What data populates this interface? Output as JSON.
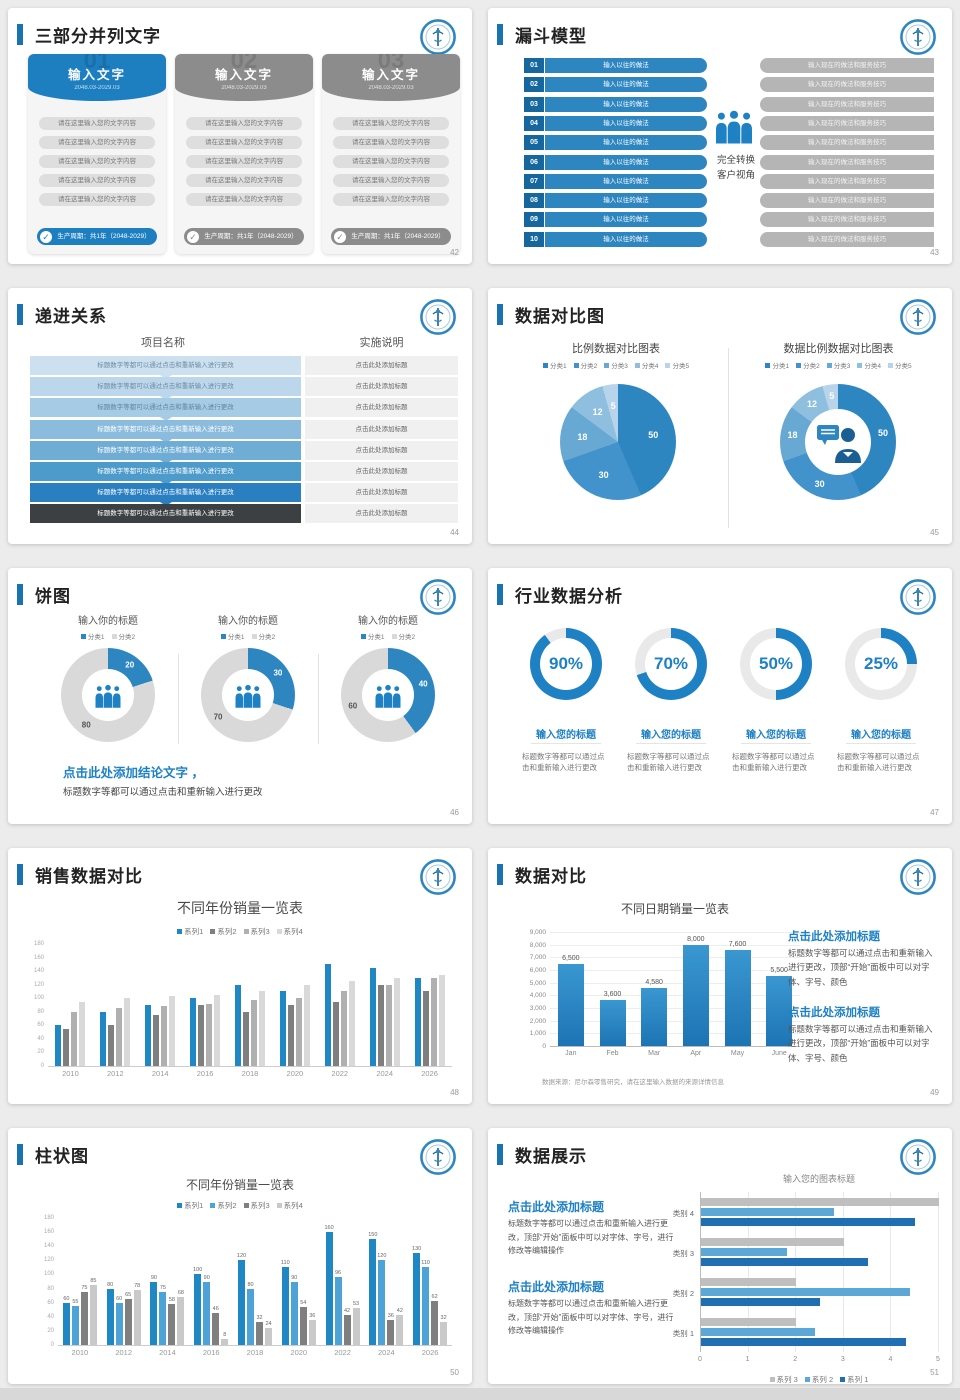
{
  "colors": {
    "accent": "#1a73b0",
    "blue": "#2e86c1",
    "blue_dark": "#15679e",
    "gray_bar": "#b5b5b5",
    "dark_row": "#3c4043"
  },
  "slides": [
    {
      "title": "三部分并列文字",
      "page": "42",
      "cards": [
        {
          "ghost": "01",
          "header": "输入文字",
          "date": "2048.03-2029.03",
          "color": "#1e7fc0",
          "items": [
            "请在这里输入您的文字内容",
            "请在这里输入您的文字内容",
            "请在这里输入您的文字内容",
            "请在这里输入您的文字内容",
            "请在这里输入您的文字内容"
          ],
          "footer": "生产周期：共1年（2048-2029）"
        },
        {
          "ghost": "02",
          "header": "输入文字",
          "date": "2048.03-2029.03",
          "color": "#8c8c8c",
          "items": [
            "请在这里输入您的文字内容",
            "请在这里输入您的文字内容",
            "请在这里输入您的文字内容",
            "请在这里输入您的文字内容",
            "请在这里输入您的文字内容"
          ],
          "footer": "生产周期：共1年（2048-2029）"
        },
        {
          "ghost": "03",
          "header": "输入文字",
          "date": "2048.03-2029.03",
          "color": "#8c8c8c",
          "items": [
            "请在这里输入您的文字内容",
            "请在这里输入您的文字内容",
            "请在这里输入您的文字内容",
            "请在这里输入您的文字内容",
            "请在这里输入您的文字内容"
          ],
          "footer": "生产周期：共1年（2048-2029）"
        }
      ]
    },
    {
      "title": "漏斗模型",
      "page": "43",
      "numbers": [
        "01",
        "02",
        "03",
        "04",
        "05",
        "06",
        "07",
        "08",
        "09",
        "10"
      ],
      "left_text": "输入以往的做法",
      "right_text": "输入现在的做法和服务技巧",
      "center_lines": [
        "完全转换",
        "客户视角"
      ]
    },
    {
      "title": "递进关系",
      "page": "44",
      "headers": [
        "项目名称",
        "实施说明"
      ],
      "left_text": "标题数字等都可以通过点击和重新输入进行更改",
      "right_text": "点击此处添加标题",
      "row_colors": [
        "#cde0f0",
        "#bcd7ec",
        "#a6cbe5",
        "#8cbcdd",
        "#6fadd5",
        "#4d9bcb",
        "#2a7fc0",
        "#3c4043"
      ],
      "row_text_colors": [
        "#6b8ba1",
        "#6b8ba1",
        "#5f849e",
        "#ffffff",
        "#ffffff",
        "#ffffff",
        "#ffffff",
        "#ffffff"
      ]
    },
    {
      "title": "数据对比图",
      "page": "45"
    },
    {
      "title": "饼图",
      "page": "46",
      "conclusion_title": "点击此处添加结论文字 ，",
      "conclusion_text": "标题数字等都可以通过点击和重新输入进行更改"
    },
    {
      "title": "行业数据分析",
      "page": "47",
      "item_title": "输入您的标题",
      "item_text": "标题数字等都可以通过点击和重新输入进行更改"
    },
    {
      "title": "销售数据对比",
      "page": "48"
    },
    {
      "title": "数据对比",
      "page": "49",
      "blocks": [
        {
          "heading": "点击此处添加标题",
          "text": "标题数字等都可以通过点击和重新输入进行更改，顶部“开始”面板中可以对字体、字号、颜色"
        },
        {
          "heading": "点击此处添加标题",
          "text": "标题数字等都可以通过点击和重新输入进行更改，顶部“开始”面板中可以对字体、字号、颜色"
        }
      ],
      "source_note": "数据来源：尼尔森零售研究，请在这里输入数据的来源详情信息"
    },
    {
      "title": "柱状图",
      "page": "50"
    },
    {
      "title": "数据展示",
      "page": "51",
      "blocks": [
        {
          "heading": "点击此处添加标题",
          "text": "标题数字等都可以通过点击和重新输入进行更改，顶部“开始”面板中可以对字体、字号，进行修改等编辑操作"
        },
        {
          "heading": "点击此处添加标题",
          "text": "标题数字等都可以通过点击和重新输入进行更改，顶部“开始”面板中可以对字体、字号，进行修改等编辑操作"
        }
      ]
    }
  ],
  "chart_data": [
    {
      "slide": "45-left",
      "type": "pie",
      "title": "比例数据对比图表",
      "legend": [
        "分类1",
        "分类2",
        "分类3",
        "分类4",
        "分类5"
      ],
      "values": [
        50,
        30,
        18,
        12,
        5
      ],
      "colors": [
        "#2e86c1",
        "#4293cb",
        "#68a9d4",
        "#8fbfde",
        "#b7d4ea"
      ]
    },
    {
      "slide": "45-right",
      "type": "donut",
      "title": "数据比例数据对比图表",
      "legend": [
        "分类1",
        "分类2",
        "分类3",
        "分类4",
        "分类5"
      ],
      "values": [
        50,
        30,
        18,
        12,
        5
      ],
      "colors": [
        "#2e86c1",
        "#4293cb",
        "#68a9d4",
        "#8fbfde",
        "#b7d4ea"
      ]
    },
    {
      "slide": "46",
      "type": "donut",
      "titles": [
        "输入你的标题",
        "输入你的标题",
        "输入你的标题"
      ],
      "legend": [
        "分类1",
        "分类2"
      ],
      "series": [
        [
          20,
          80
        ],
        [
          30,
          70
        ],
        [
          40,
          60
        ]
      ],
      "colors": [
        "#2e86c1",
        "#d9d9d9"
      ]
    },
    {
      "slide": "47",
      "type": "ring",
      "values": [
        90,
        70,
        50,
        25
      ],
      "labels": [
        "90%",
        "70%",
        "50%",
        "25%"
      ],
      "color": "#1e81c4",
      "track": "#e9e9e9"
    },
    {
      "slide": "48",
      "type": "bar",
      "title": "不同年份销量一览表",
      "categories": [
        "2010",
        "2012",
        "2014",
        "2016",
        "2018",
        "2020",
        "2022",
        "2024",
        "2026"
      ],
      "series": [
        {
          "name": "系列1",
          "color": "#1f87c4",
          "values": [
            60,
            80,
            90,
            100,
            120,
            110,
            150,
            145,
            130
          ]
        },
        {
          "name": "系列2",
          "color": "#7f7f7f",
          "values": [
            55,
            60,
            75,
            90,
            80,
            90,
            95,
            120,
            110
          ]
        },
        {
          "name": "系列3",
          "color": "#b0b0b0",
          "values": [
            80,
            85,
            88,
            92,
            98,
            100,
            110,
            120,
            130
          ]
        },
        {
          "name": "系列4",
          "color": "#d9d9d9",
          "values": [
            95,
            100,
            103,
            105,
            110,
            120,
            125,
            130,
            135
          ]
        }
      ],
      "ylim": [
        0,
        180
      ],
      "ytick_step": 20,
      "show_labels": false
    },
    {
      "slide": "49",
      "type": "bar",
      "title": "不同日期销量一览表",
      "categories": [
        "Jan",
        "Feb",
        "Mar",
        "Apr",
        "May",
        "June"
      ],
      "values": [
        6500,
        3600,
        4580,
        8000,
        7600,
        5500
      ],
      "labels": [
        "6,500",
        "3,600",
        "4,580",
        "8,000",
        "7,600",
        "5,500"
      ],
      "ylim": [
        0,
        9000
      ],
      "yticks": [
        "9,000",
        "8,000",
        "7,000",
        "6,000",
        "5,000",
        "4,000",
        "3,000",
        "2,000",
        "1,000",
        "0"
      ],
      "color": "#1f87c4"
    },
    {
      "slide": "50",
      "type": "bar",
      "title": "不同年份销量一览表",
      "categories": [
        "2010",
        "2012",
        "2014",
        "2016",
        "2018",
        "2020",
        "2022",
        "2024",
        "2026"
      ],
      "series": [
        {
          "name": "系列1",
          "color": "#1f87c4",
          "values": [
            60,
            80,
            90,
            100,
            120,
            110,
            160,
            150,
            130
          ]
        },
        {
          "name": "系列2",
          "color": "#4da3d8",
          "values": [
            55,
            60,
            75,
            90,
            80,
            90,
            96,
            120,
            110
          ]
        },
        {
          "name": "系列3",
          "color": "#7f7f7f",
          "values": [
            75,
            65,
            58,
            46,
            32,
            54,
            42,
            36,
            62
          ]
        },
        {
          "name": "系列4",
          "color": "#c9c9c9",
          "values": [
            85,
            78,
            68,
            8,
            24,
            36,
            53,
            42,
            32
          ]
        }
      ],
      "ylim": [
        0,
        180
      ],
      "ytick_step": 20,
      "show_labels": true
    },
    {
      "slide": "51",
      "type": "hbar",
      "title": "输入您的图表标题",
      "categories": [
        "类别 4",
        "类别 3",
        "类别 2",
        "类别 1"
      ],
      "series": [
        {
          "name": "系列 3",
          "color": "#bfbfbf",
          "values": [
            5,
            3,
            2,
            2
          ]
        },
        {
          "name": "系列 2",
          "color": "#5ba7d8",
          "values": [
            2.8,
            1.8,
            4.4,
            2.4
          ]
        },
        {
          "name": "系列 1",
          "color": "#1f6fb2",
          "values": [
            4.5,
            3.5,
            2.5,
            4.3
          ]
        }
      ],
      "xlim": [
        0,
        5
      ],
      "xticks": [
        "0",
        "1",
        "2",
        "3",
        "4",
        "5"
      ]
    }
  ]
}
